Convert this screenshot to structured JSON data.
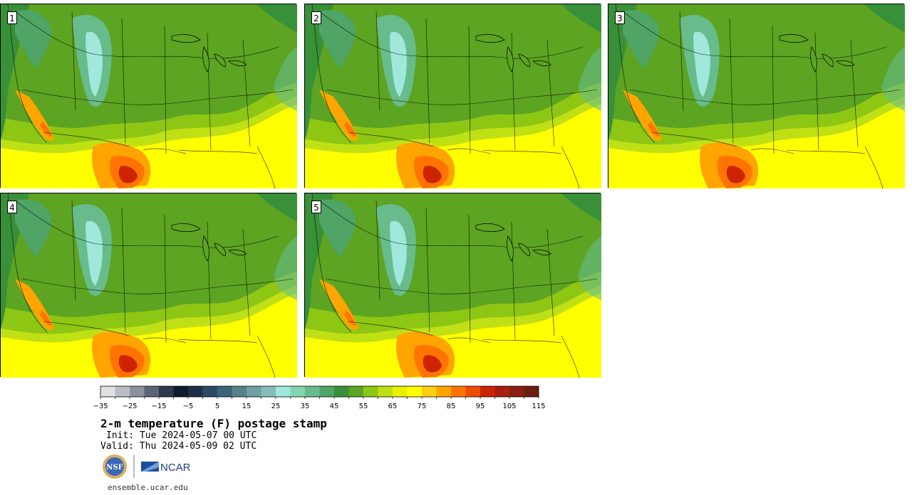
{
  "panels": [
    {
      "label": "1",
      "col": 0,
      "row": 0
    },
    {
      "label": "2",
      "col": 1,
      "row": 0
    },
    {
      "label": "3",
      "col": 2,
      "row": 0
    },
    {
      "label": "4",
      "col": 0,
      "row": 1
    },
    {
      "label": "5",
      "col": 1,
      "row": 1
    }
  ],
  "colorbar": {
    "colors": [
      "#e0e0e0",
      "#b8bcc4",
      "#8a909c",
      "#5c6478",
      "#2e3850",
      "#0e1a2e",
      "#1e3048",
      "#2c4a66",
      "#3c6478",
      "#56808a",
      "#70a0a4",
      "#88bcbc",
      "#a0e8dc",
      "#84d4b0",
      "#68bc8c",
      "#50a466",
      "#389038",
      "#5ca422",
      "#8ec614",
      "#c0e016",
      "#e8f000",
      "#ffff00",
      "#ffce10",
      "#ffa400",
      "#ff7400",
      "#f04c00",
      "#cc2400",
      "#a81e10",
      "#8a1e12",
      "#6c1e12"
    ],
    "tick_labels": [
      "−35",
      "−25",
      "−15",
      "−5",
      "5",
      "15",
      "25",
      "35",
      "45",
      "55",
      "65",
      "75",
      "85",
      "95",
      "105",
      "115"
    ]
  },
  "title": "2-m temperature (F) postage stamp",
  "init": "Init: Tue 2024-05-07 00 UTC",
  "valid": "Valid: Thu 2024-05-09 02 UTC",
  "logos": {
    "nsf": "NSF",
    "ncar": "NCAR"
  },
  "site": "ensemble.ucar.edu"
}
